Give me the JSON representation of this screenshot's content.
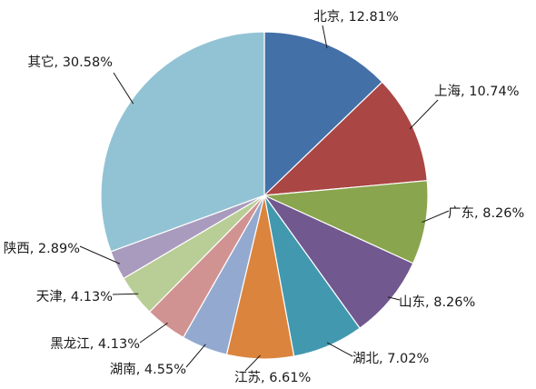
{
  "chart_data": {
    "type": "pie",
    "slices": [
      {
        "name": "北京",
        "value": 12.81,
        "label": "北京, 12.81%",
        "color": "#4470a8"
      },
      {
        "name": "上海",
        "value": 10.74,
        "label": "上海, 10.74%",
        "color": "#aa4644"
      },
      {
        "name": "广东",
        "value": 8.26,
        "label": "广东, 8.26%",
        "color": "#89a54e"
      },
      {
        "name": "山东",
        "value": 8.26,
        "label": "山东, 8.26%",
        "color": "#71588f"
      },
      {
        "name": "湖北",
        "value": 7.02,
        "label": "湖北, 7.02%",
        "color": "#4298af"
      },
      {
        "name": "江苏",
        "value": 6.61,
        "label": "江苏, 6.61%",
        "color": "#db843d"
      },
      {
        "name": "湖南",
        "value": 4.55,
        "label": "湖南, 4.55%",
        "color": "#93a9cf"
      },
      {
        "name": "黑龙江",
        "value": 4.13,
        "label": "黑龙江, 4.13%",
        "color": "#d19392"
      },
      {
        "name": "天津",
        "value": 4.13,
        "label": "天津, 4.13%",
        "color": "#b9cd96"
      },
      {
        "name": "陕西",
        "value": 2.89,
        "label": "陕西, 2.89%",
        "color": "#a99bbd"
      },
      {
        "name": "其它",
        "value": 30.58,
        "label": "其它, 30.58%",
        "color": "#92c3d4"
      }
    ],
    "start_angle": "12 o'clock",
    "direction": "clockwise",
    "legend": "none",
    "data_labels": "outside with leader lines"
  }
}
